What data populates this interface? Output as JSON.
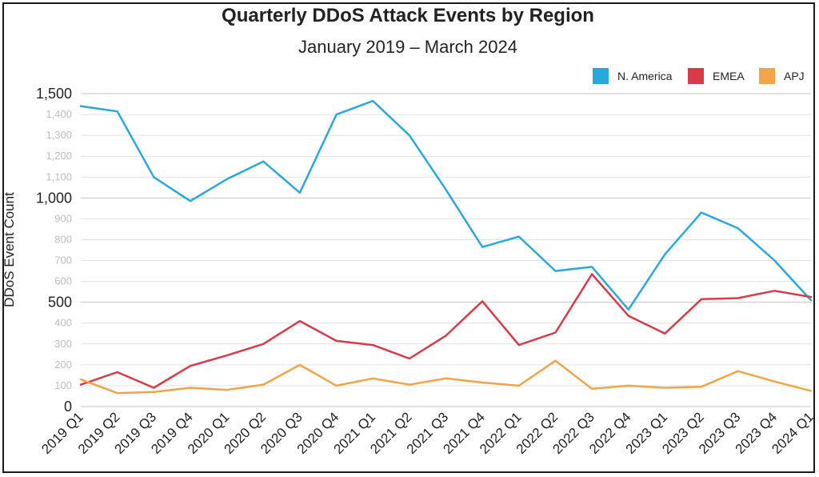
{
  "chart_data": {
    "type": "line",
    "title": "Quarterly DDoS Attack Events by Region",
    "subtitle": "January 2019 – March 2024",
    "xlabel": "",
    "ylabel": "DDoS Event Count",
    "ylim": [
      0,
      1500
    ],
    "yticks": [
      0,
      100,
      200,
      300,
      400,
      500,
      600,
      700,
      800,
      900,
      1000,
      1100,
      1200,
      1300,
      1400,
      1500
    ],
    "ytick_labels": [
      "0",
      "100",
      "200",
      "300",
      "400",
      "500",
      "600",
      "700",
      "800",
      "900",
      "1,000",
      "1,100",
      "1,200",
      "1,300",
      "1,400",
      "1,500"
    ],
    "major_yticks": [
      0,
      500,
      1000,
      1500
    ],
    "grid": true,
    "legend_position": "top-right",
    "categories": [
      "2019 Q1",
      "2019 Q2",
      "2019 Q3",
      "2019 Q4",
      "2020 Q1",
      "2020 Q2",
      "2020 Q3",
      "2020 Q4",
      "2021 Q1",
      "2021 Q2",
      "2021 Q3",
      "2021 Q4",
      "2022 Q1",
      "2022 Q2",
      "2022 Q3",
      "2022 Q4",
      "2023 Q1",
      "2023 Q2",
      "2023 Q3",
      "2023 Q4",
      "2024 Q1"
    ],
    "series": [
      {
        "name": "N. America",
        "color": "#29a8e0",
        "values": [
          1440,
          1415,
          1100,
          985,
          1090,
          1175,
          1025,
          1400,
          1465,
          1300,
          1040,
          765,
          815,
          650,
          670,
          465,
          730,
          930,
          855,
          700,
          510
        ]
      },
      {
        "name": "EMEA",
        "color": "#d93a48",
        "values": [
          105,
          165,
          90,
          195,
          245,
          300,
          410,
          315,
          295,
          230,
          340,
          505,
          295,
          355,
          635,
          435,
          350,
          515,
          520,
          555,
          525
        ]
      },
      {
        "name": "APJ",
        "color": "#f5a347",
        "values": [
          130,
          65,
          70,
          90,
          80,
          105,
          200,
          100,
          135,
          105,
          135,
          115,
          100,
          220,
          85,
          100,
          90,
          95,
          170,
          120,
          75
        ]
      }
    ]
  }
}
